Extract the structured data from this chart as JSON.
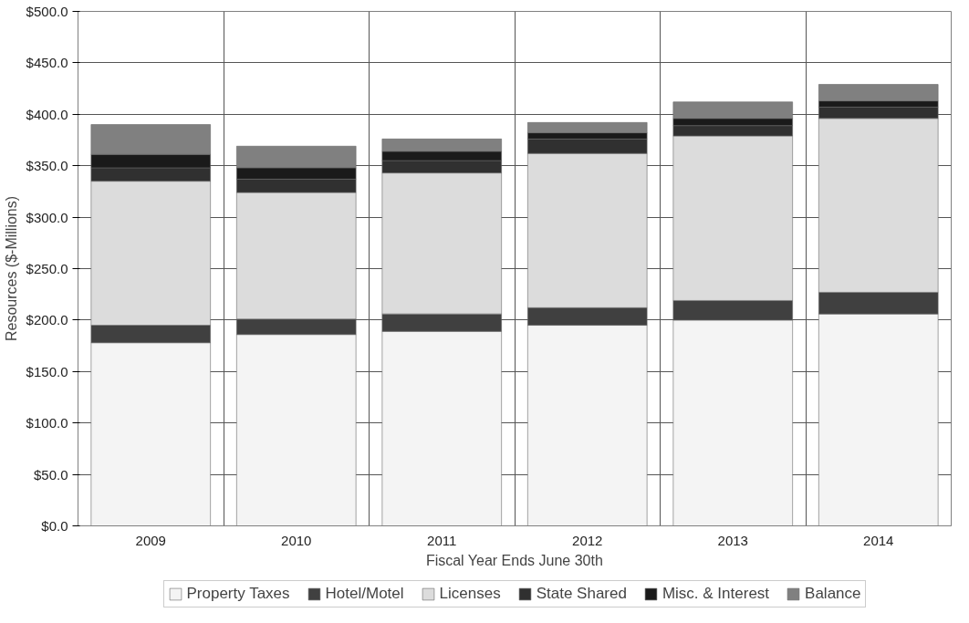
{
  "chart_data": {
    "type": "bar",
    "stacked": true,
    "xlabel": "Fiscal Year Ends June 30th",
    "ylabel": "Resources ($-Millions)",
    "categories": [
      "2009",
      "2010",
      "2011",
      "2012",
      "2013",
      "2014"
    ],
    "series": [
      {
        "name": "Property Taxes",
        "color": "#f4f4f4",
        "values": [
          178,
          186,
          189,
          195,
          200,
          206
        ]
      },
      {
        "name": "Hotel/Motel",
        "color": "#404040",
        "values": [
          17,
          15,
          17,
          17,
          19,
          21
        ]
      },
      {
        "name": "Licenses",
        "color": "#dcdcdc",
        "values": [
          140,
          123,
          137,
          150,
          160,
          169
        ]
      },
      {
        "name": "State Shared",
        "color": "#303030",
        "values": [
          13,
          13,
          12,
          14,
          10,
          11
        ]
      },
      {
        "name": "Misc. & Interest",
        "color": "#1a1a1a",
        "values": [
          13,
          11,
          9,
          6,
          7,
          6
        ]
      },
      {
        "name": "Balance",
        "color": "#808080",
        "values": [
          29,
          21,
          12,
          10,
          16,
          16
        ]
      }
    ],
    "ylim": [
      0,
      500
    ],
    "yticks": [
      {
        "value": 0,
        "label": "$0.0"
      },
      {
        "value": 50,
        "label": "$50.0"
      },
      {
        "value": 100,
        "label": "$100.0"
      },
      {
        "value": 150,
        "label": "$150.0"
      },
      {
        "value": 200,
        "label": "$200.0"
      },
      {
        "value": 250,
        "label": "$250.0"
      },
      {
        "value": 300,
        "label": "$300.0"
      },
      {
        "value": 350,
        "label": "$350.0"
      },
      {
        "value": 400,
        "label": "$400.0"
      },
      {
        "value": 450,
        "label": "$450.0"
      },
      {
        "value": 500,
        "label": "$500.0"
      }
    ],
    "grid": true,
    "legend": "bottom"
  }
}
